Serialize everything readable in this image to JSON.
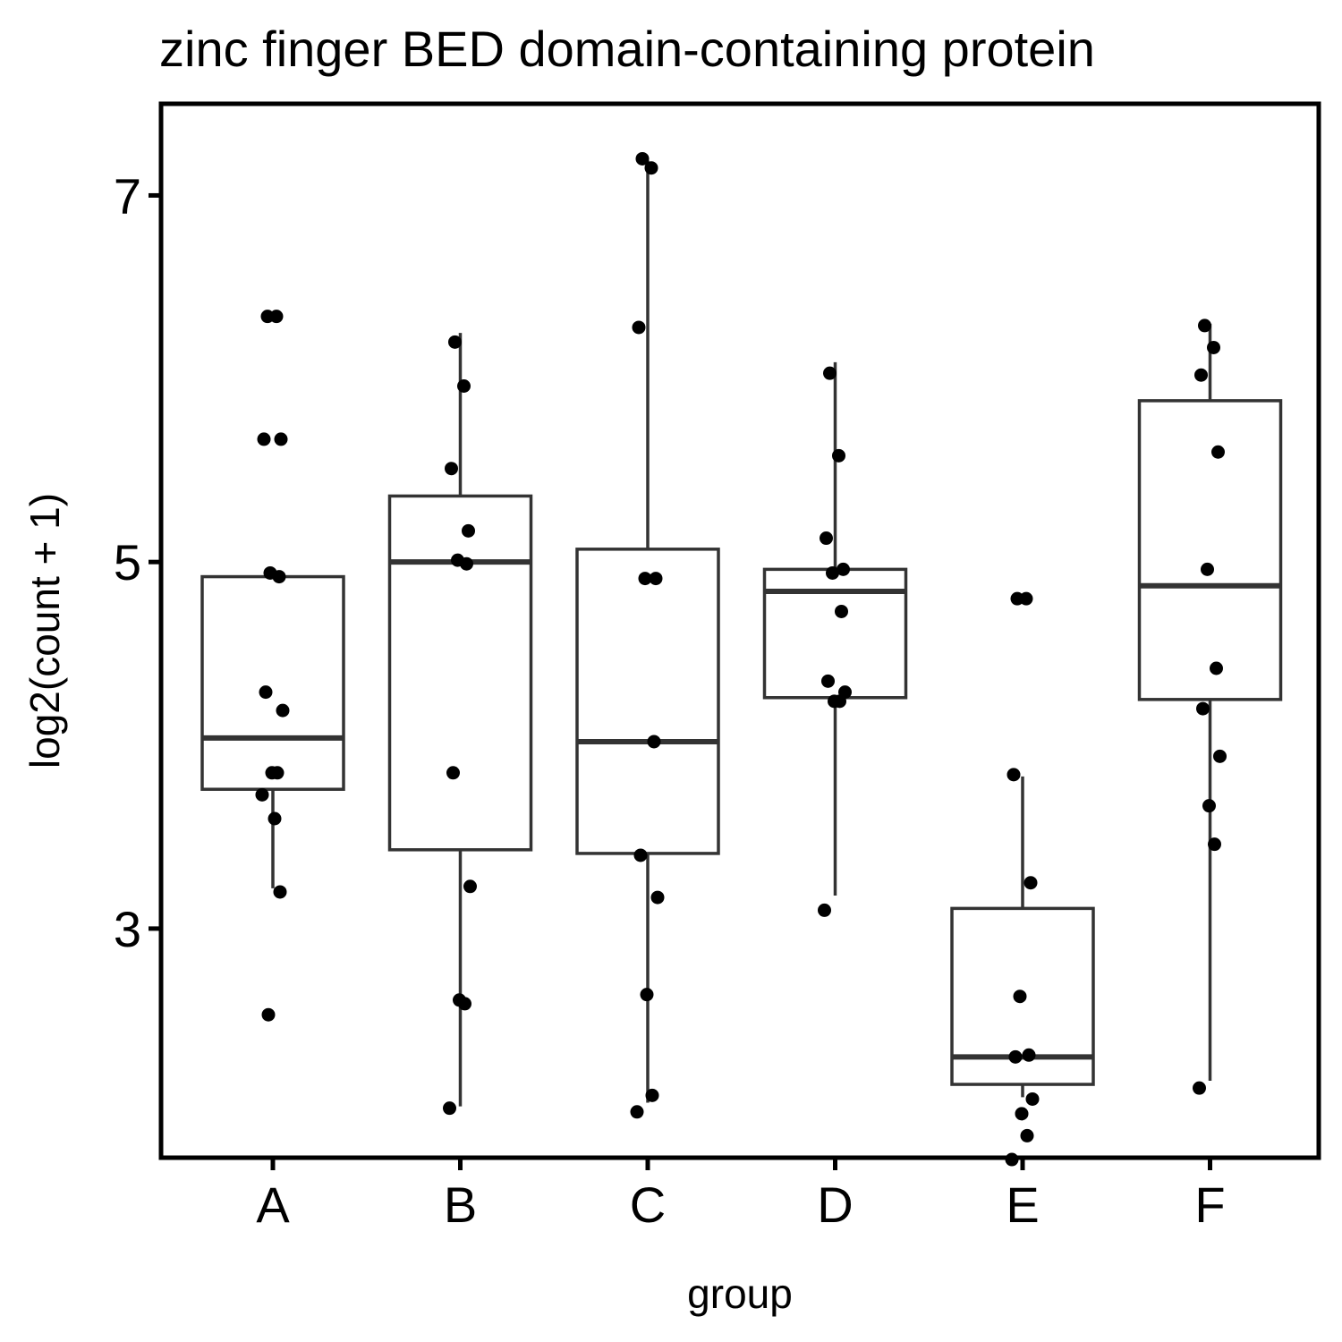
{
  "chart_data": {
    "type": "box",
    "title": "zinc finger BED domain-containing protein",
    "xlabel": "group",
    "ylabel": "log2(count + 1)",
    "categories": [
      "A",
      "B",
      "C",
      "D",
      "E",
      "F"
    ],
    "yticks": [
      3,
      5,
      7
    ],
    "ylim": [
      1.75,
      7.5
    ],
    "grid": false,
    "legend": "none",
    "colors": {
      "box_line": "#333333",
      "point": "#000000",
      "frame": "#000000"
    },
    "boxes": [
      {
        "group": "A",
        "whisker_low": 3.22,
        "q1": 3.76,
        "median": 4.04,
        "q3": 4.92,
        "whisker_high": 4.92
      },
      {
        "group": "B",
        "whisker_low": 2.03,
        "q1": 3.43,
        "median": 5.0,
        "q3": 5.36,
        "whisker_high": 6.25
      },
      {
        "group": "C",
        "whisker_low": 2.05,
        "q1": 3.41,
        "median": 4.02,
        "q3": 5.07,
        "whisker_high": 7.19
      },
      {
        "group": "D",
        "whisker_low": 3.18,
        "q1": 4.26,
        "median": 4.84,
        "q3": 4.96,
        "whisker_high": 6.09
      },
      {
        "group": "E",
        "whisker_low": 2.08,
        "q1": 2.15,
        "median": 2.3,
        "q3": 3.11,
        "whisker_high": 3.83
      },
      {
        "group": "F",
        "whisker_low": 2.17,
        "q1": 4.25,
        "median": 4.87,
        "q3": 5.88,
        "whisker_high": 6.3
      }
    ],
    "points": [
      {
        "group": "A",
        "values": [
          6.34,
          6.34,
          5.67,
          5.67,
          4.94,
          4.92,
          4.29,
          4.19,
          3.85,
          3.85,
          3.73,
          3.6,
          3.2,
          2.53
        ]
      },
      {
        "group": "B",
        "values": [
          6.2,
          5.96,
          5.51,
          5.17,
          5.01,
          4.99,
          3.85,
          3.23,
          2.61,
          2.59,
          2.02
        ]
      },
      {
        "group": "C",
        "values": [
          7.2,
          7.15,
          6.28,
          4.91,
          4.91,
          4.02,
          3.4,
          3.17,
          2.64,
          2.09,
          2.0
        ]
      },
      {
        "group": "D",
        "values": [
          6.03,
          5.58,
          5.13,
          4.96,
          4.94,
          4.73,
          4.35,
          4.29,
          4.24,
          4.24,
          3.1
        ]
      },
      {
        "group": "E",
        "values": [
          4.8,
          4.8,
          3.84,
          3.25,
          2.63,
          2.31,
          2.3,
          2.07,
          1.99,
          1.87,
          1.74
        ]
      },
      {
        "group": "F",
        "values": [
          6.29,
          6.17,
          6.02,
          5.6,
          4.96,
          4.42,
          4.2,
          3.94,
          3.67,
          3.46,
          2.13
        ]
      }
    ]
  }
}
